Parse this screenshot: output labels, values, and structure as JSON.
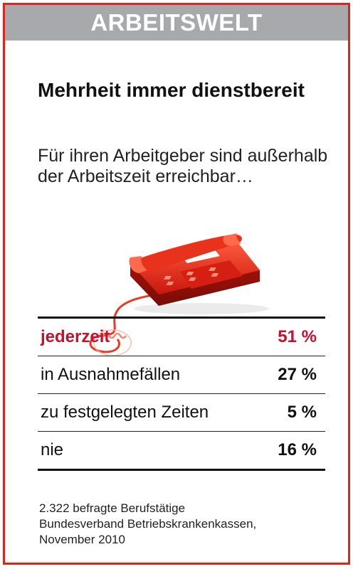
{
  "banner": "ARBEITSWELT",
  "title": "Mehrheit immer dienstbereit",
  "subtitle": "Für ihren Arbeitgeber sind außerhalb der Arbeitszeit erreichbar…",
  "colors": {
    "accent": "#e2231a",
    "highlight": "#c8102e",
    "banner_bg": "#a7a9ac"
  },
  "icon": "telephone-icon",
  "chart_data": {
    "type": "table",
    "categories": [
      "jederzeit",
      "in Ausnahmefällen",
      "zu festgelegten Zeiten",
      "nie"
    ],
    "values": [
      51,
      27,
      5,
      16
    ],
    "value_labels": [
      "51 %",
      "27 %",
      "5 %",
      "16 %"
    ],
    "highlighted": "jederzeit"
  },
  "footer": {
    "line1": "2.322 befragte Berufstätige",
    "line2": "Bundesverband Betriebskrankenkassen,",
    "line3": "November 2010"
  }
}
